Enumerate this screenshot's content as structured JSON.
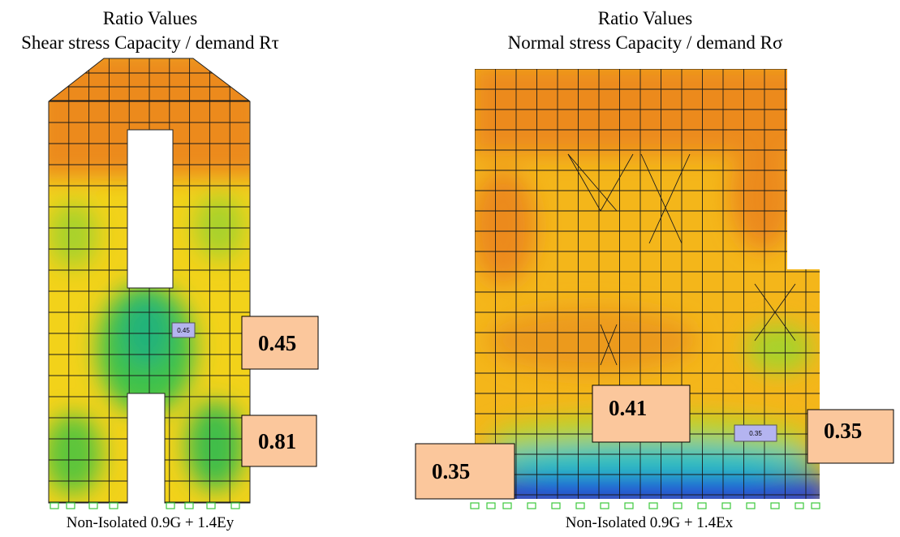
{
  "left": {
    "title": "Ratio Values",
    "subtitle": "Shear stress Capacity / demand Rτ",
    "caption": "Non-Isolated  0.9G + 1.4Ey",
    "callouts": [
      "0.45",
      "0.81"
    ],
    "tags": [
      "0.45"
    ]
  },
  "right": {
    "title": "Ratio Values",
    "subtitle": "Normal stress Capacity / demand Rσ",
    "caption": "Non-Isolated  0.9G + 1.4Ex",
    "callouts": [
      "0.41",
      "0.35",
      "0.35"
    ],
    "tags": [
      "0.35"
    ]
  }
}
